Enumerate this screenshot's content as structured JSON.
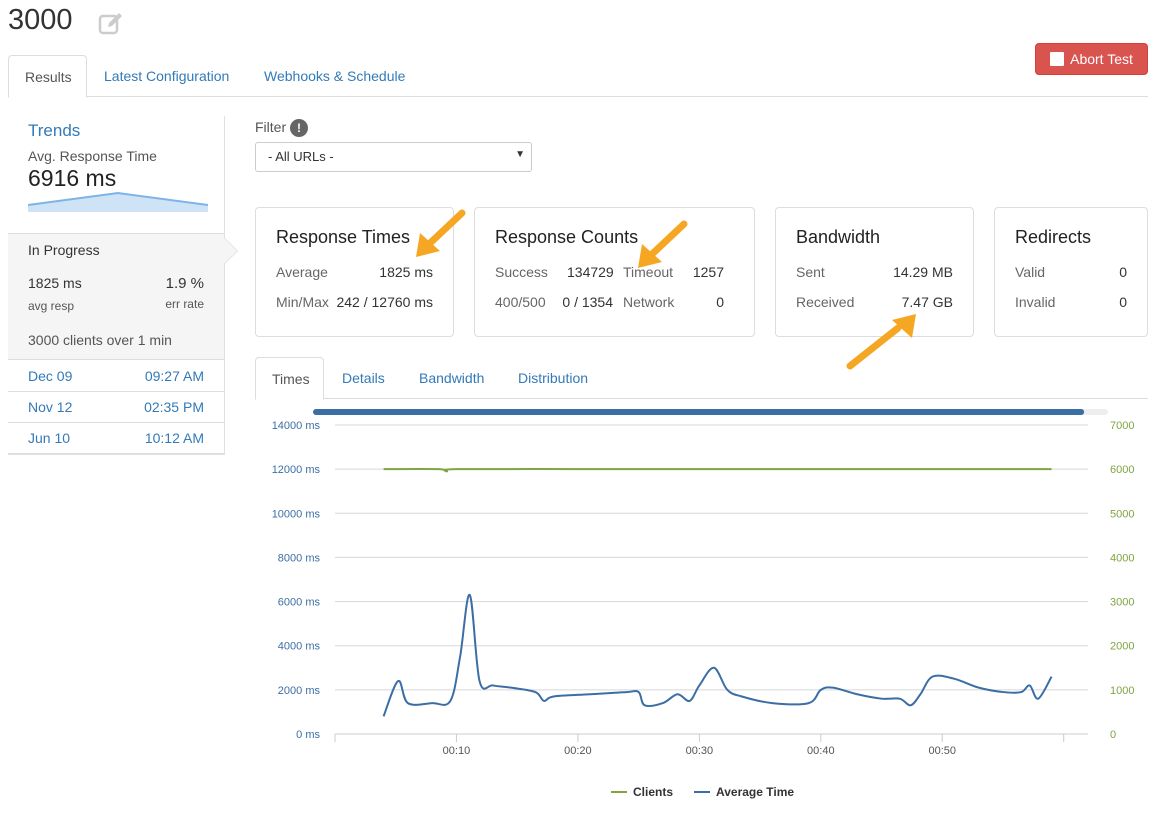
{
  "page": {
    "title": "3000"
  },
  "actions": {
    "abort_label": "Abort Test"
  },
  "tabs_top": [
    "Results",
    "Latest Configuration",
    "Webhooks & Schedule"
  ],
  "trends": {
    "title": "Trends",
    "avg_label": "Avg. Response Time",
    "avg_value": "6916 ms"
  },
  "progress": {
    "title": "In Progress",
    "avg_resp": "1825 ms",
    "avg_resp_label": "avg resp",
    "err_rate": "1.9 %",
    "err_rate_label": "err rate",
    "clients_text": "3000 clients over 1 min"
  },
  "history": [
    {
      "date": "Dec 09",
      "time": "09:27 AM"
    },
    {
      "date": "Nov 12",
      "time": "02:35 PM"
    },
    {
      "date": "Jun 10",
      "time": "10:12 AM"
    }
  ],
  "filter": {
    "label": "Filter",
    "info": "!",
    "selected": "- All URLs -"
  },
  "cards": {
    "response_times": {
      "title": "Response Times",
      "average_label": "Average",
      "average_value": "1825 ms",
      "minmax_label": "Min/Max",
      "minmax_value": "242 / 12760 ms"
    },
    "response_counts": {
      "title": "Response Counts",
      "success_label": "Success",
      "success_value": "134729",
      "timeout_label": "Timeout",
      "timeout_value": "1257",
      "err_label": "400/500",
      "err_value": "0 / 1354",
      "network_label": "Network",
      "network_value": "0"
    },
    "bandwidth": {
      "title": "Bandwidth",
      "sent_label": "Sent",
      "sent_value": "14.29 MB",
      "received_label": "Received",
      "received_value": "7.47 GB"
    },
    "redirects": {
      "title": "Redirects",
      "valid_label": "Valid",
      "valid_value": "0",
      "invalid_label": "Invalid",
      "invalid_value": "0"
    }
  },
  "tabs_chart": [
    "Times",
    "Details",
    "Bandwidth",
    "Distribution"
  ],
  "colors": {
    "primary": "#337ab7",
    "danger": "#d9534f",
    "clients": "#7fa440",
    "avg_time": "#3b6ea5",
    "arrow": "#f5a623"
  },
  "chart_data": {
    "type": "line",
    "progress": 0.97,
    "y_left": {
      "ticks": [
        "14000 ms",
        "12000 ms",
        "10000 ms",
        "8000 ms",
        "6000 ms",
        "4000 ms",
        "2000 ms",
        "0 ms"
      ],
      "range": [
        0,
        14000
      ]
    },
    "y_right": {
      "ticks": [
        "7000",
        "6000",
        "5000",
        "4000",
        "3000",
        "2000",
        "1000",
        "0"
      ],
      "range": [
        0,
        7000
      ]
    },
    "x_ticks": [
      "00:10",
      "00:20",
      "00:30",
      "00:40",
      "00:50"
    ],
    "x_tick_values": [
      10,
      20,
      30,
      40,
      50
    ],
    "x_range": [
      0,
      62
    ],
    "series": [
      {
        "name": "Clients",
        "axis": "right",
        "color": "#7fa440",
        "points": [
          [
            4,
            6000
          ],
          [
            8.5,
            6000
          ],
          [
            9.2,
            5950
          ],
          [
            10,
            6000
          ],
          [
            20,
            6000
          ],
          [
            30,
            6000
          ],
          [
            40,
            6000
          ],
          [
            50,
            6000
          ],
          [
            59,
            6000
          ]
        ]
      },
      {
        "name": "Average Time",
        "axis": "left",
        "color": "#3b6ea5",
        "points": [
          [
            4,
            800
          ],
          [
            5.2,
            2400
          ],
          [
            6,
            1400
          ],
          [
            8,
            1400
          ],
          [
            9.5,
            1500
          ],
          [
            10.3,
            3500
          ],
          [
            11.1,
            6300
          ],
          [
            11.9,
            2400
          ],
          [
            13,
            2200
          ],
          [
            14.5,
            2100
          ],
          [
            16.5,
            1900
          ],
          [
            17.2,
            1500
          ],
          [
            18,
            1700
          ],
          [
            21,
            1800
          ],
          [
            24,
            1900
          ],
          [
            25,
            1900
          ],
          [
            25.5,
            1300
          ],
          [
            27,
            1400
          ],
          [
            28.2,
            1800
          ],
          [
            29.2,
            1500
          ],
          [
            30,
            2200
          ],
          [
            31.2,
            3000
          ],
          [
            32.3,
            2000
          ],
          [
            33.5,
            1700
          ],
          [
            36,
            1400
          ],
          [
            39,
            1400
          ],
          [
            40,
            2000
          ],
          [
            41,
            2100
          ],
          [
            43,
            1800
          ],
          [
            45,
            1600
          ],
          [
            46.5,
            1600
          ],
          [
            47.4,
            1300
          ],
          [
            48.2,
            1800
          ],
          [
            49.2,
            2600
          ],
          [
            51,
            2500
          ],
          [
            53,
            2100
          ],
          [
            55,
            1900
          ],
          [
            56.5,
            1900
          ],
          [
            57.2,
            2200
          ],
          [
            57.9,
            1600
          ],
          [
            59,
            2600
          ]
        ]
      }
    ]
  }
}
